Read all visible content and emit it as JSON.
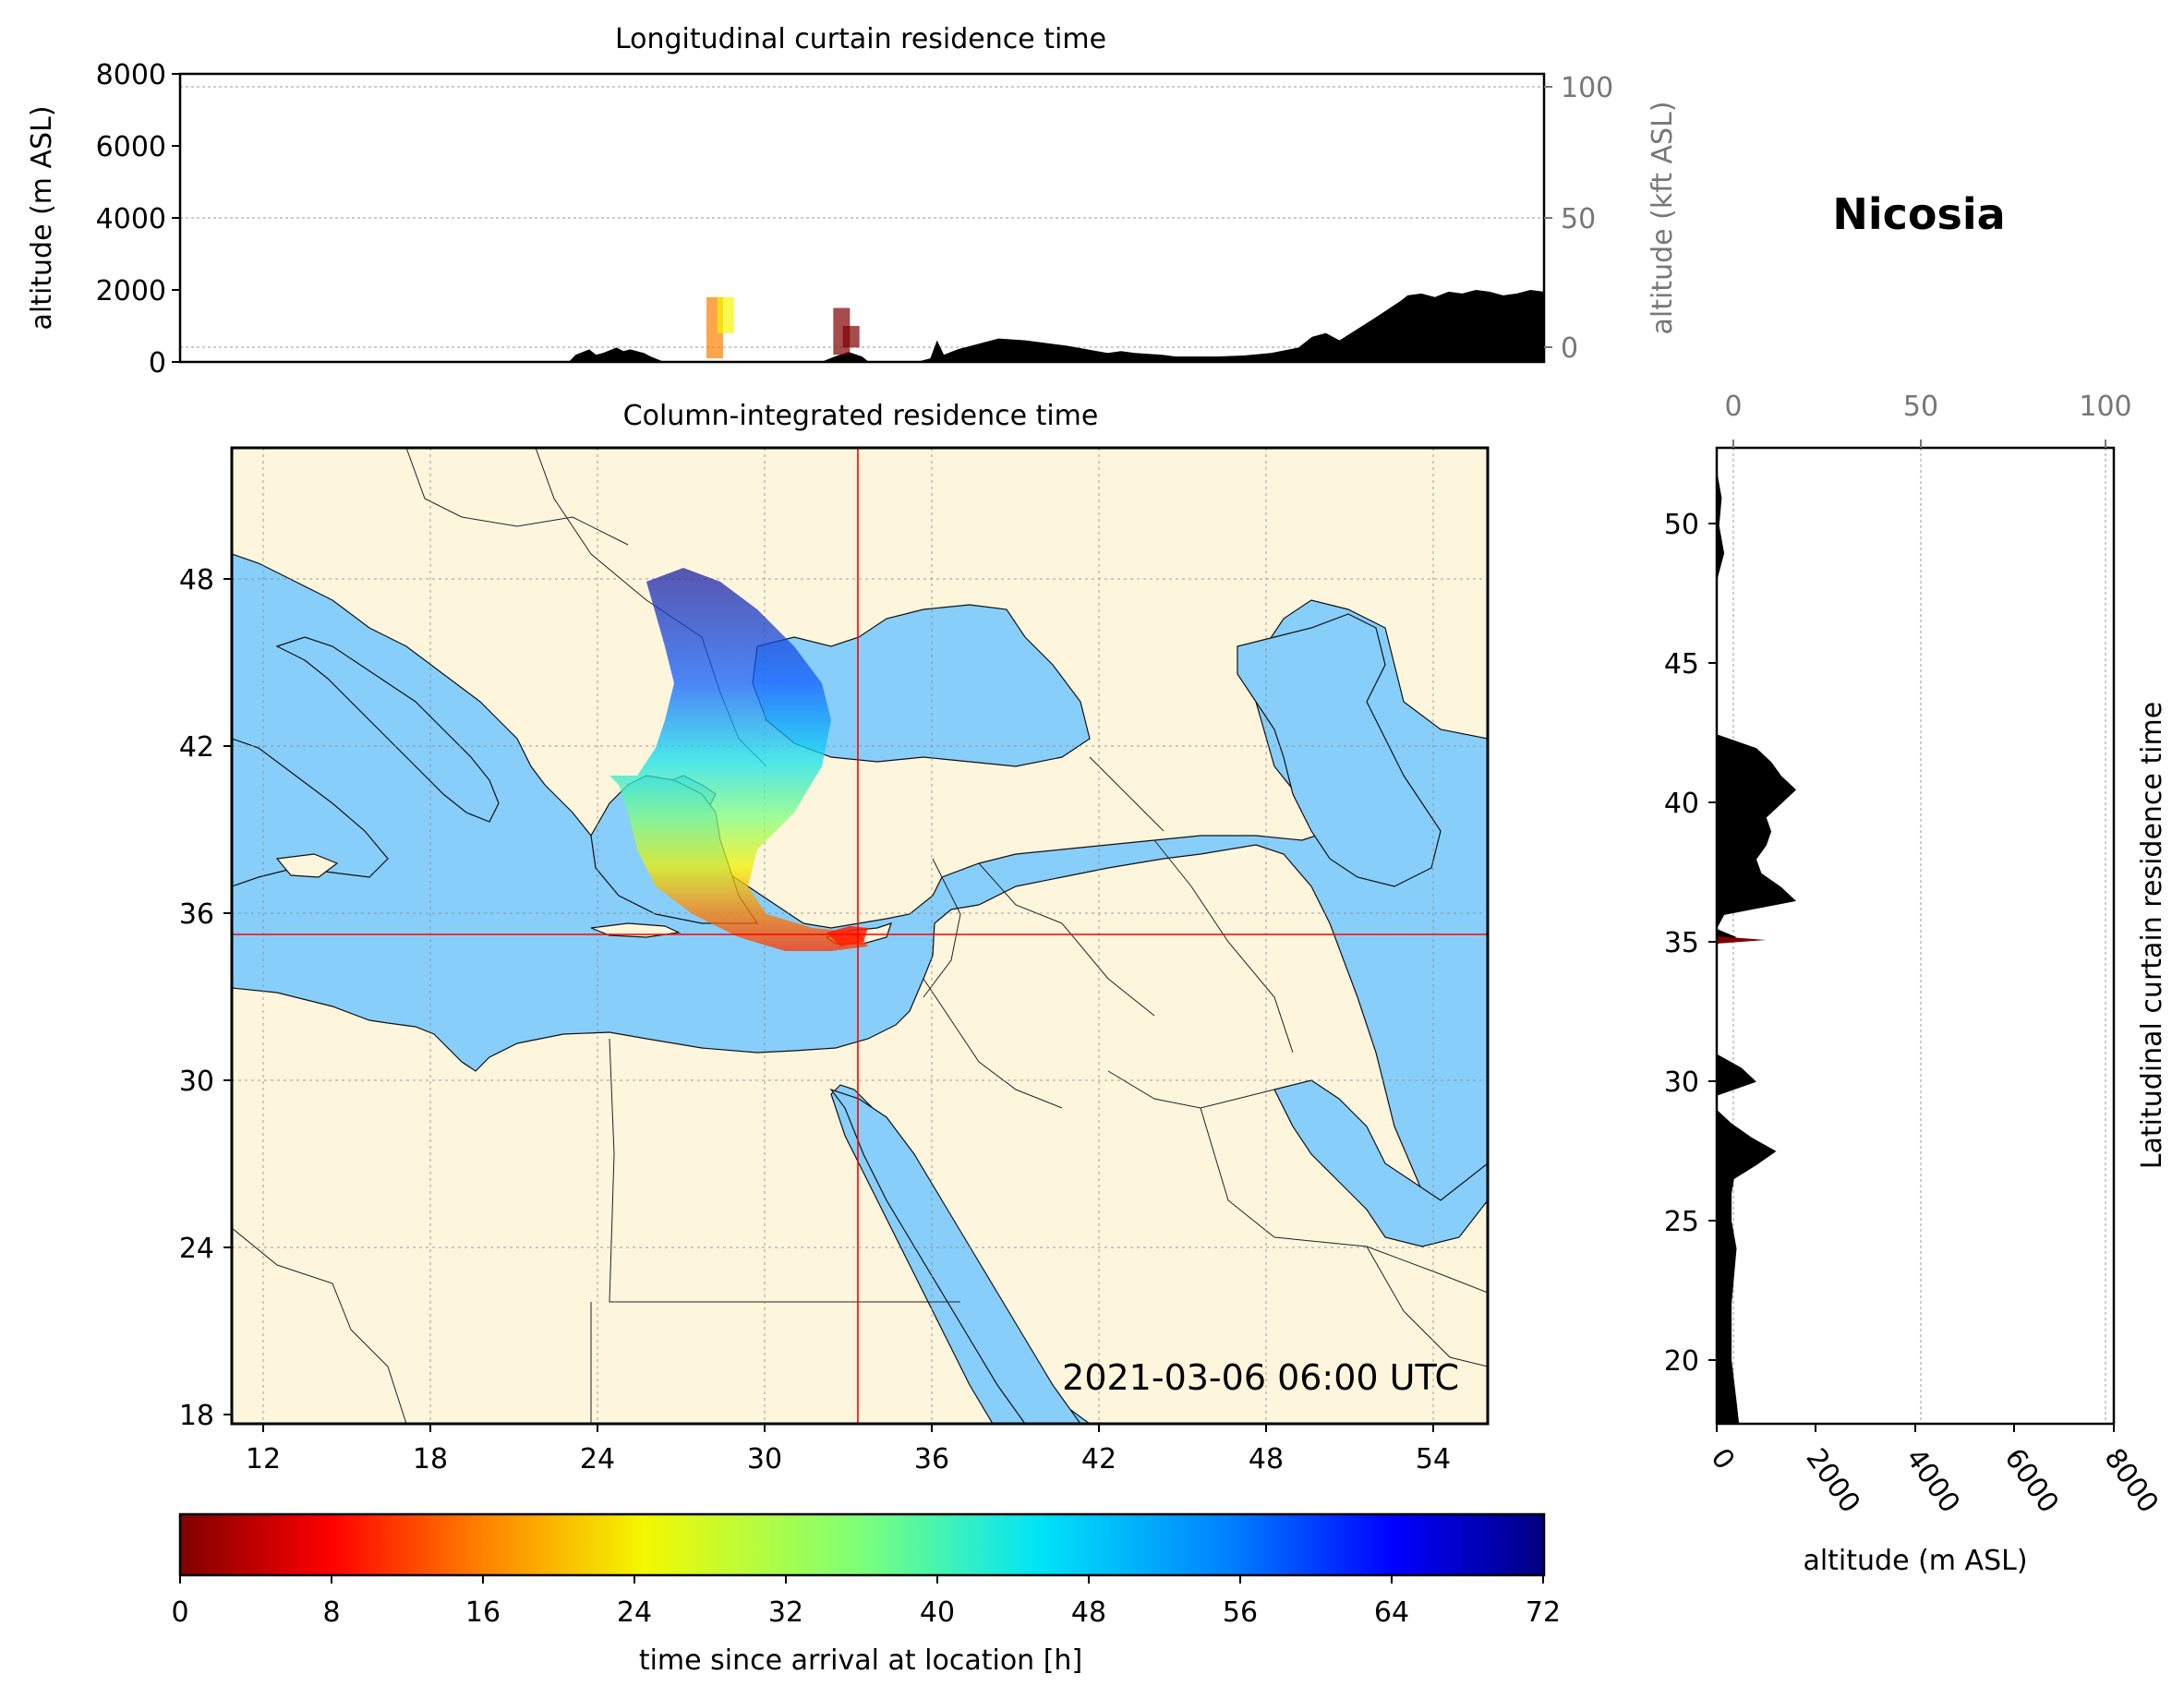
{
  "location": "Nicosia",
  "timestamp": "2021-03-06 06:00 UTC",
  "top_panel": {
    "title": "Longitudinal curtain residence time",
    "ylabel_left": "altitude (m ASL)",
    "ylabel_right": "altitude (kft ASL)",
    "left_ticks": [
      "0",
      "2000",
      "4000",
      "6000",
      "8000"
    ],
    "right_ticks": [
      "0",
      "50",
      "100"
    ]
  },
  "map_panel": {
    "title": "Column-integrated residence time",
    "lon_ticks": [
      "12",
      "18",
      "24",
      "30",
      "36",
      "42",
      "48",
      "54"
    ],
    "lat_ticks": [
      "18",
      "24",
      "30",
      "36",
      "42",
      "48"
    ],
    "location_lon": 33.4,
    "location_lat": 35.2,
    "land_color": "#fdf5dc",
    "sea_color": "#87cefa"
  },
  "right_panel": {
    "ylabel": "Latitudinal curtain residence time",
    "xlabel": "altitude (m ASL)",
    "bottom_ticks": [
      "0",
      "2000",
      "4000",
      "6000",
      "8000"
    ],
    "top_ticks": [
      "0",
      "50",
      "100"
    ],
    "lat_ticks": [
      "20",
      "25",
      "30",
      "35",
      "40",
      "45",
      "50"
    ]
  },
  "colorbar": {
    "label": "time since arrival at location [h]",
    "ticks": [
      "0",
      "8",
      "16",
      "24",
      "32",
      "40",
      "48",
      "56",
      "64",
      "72"
    ],
    "colormap": "jet_r",
    "min": 0,
    "max": 72
  },
  "chart_data": [
    {
      "type": "area",
      "title": "Longitudinal curtain residence time",
      "ylabel": "altitude (m ASL)",
      "ylim": [
        0,
        8000
      ],
      "secondary_ylabel": "altitude (kft ASL)",
      "secondary_ylim": [
        -5,
        105
      ],
      "grid": true,
      "terrain": {
        "x": [
          0,
          0.285,
          0.29,
          0.3,
          0.305,
          0.31,
          0.32,
          0.325,
          0.33,
          0.34,
          0.345,
          0.355,
          0.47,
          0.48,
          0.49,
          0.5,
          0.505,
          0.54,
          0.55,
          0.555,
          0.56,
          0.57,
          0.6,
          0.6,
          0.62,
          0.65,
          0.68,
          0.69,
          0.7,
          0.72,
          0.73,
          0.76,
          0.78,
          0.8,
          0.82,
          0.83,
          0.84,
          0.85,
          0.875,
          0.895,
          0.9,
          0.91,
          0.92,
          0.93,
          0.94,
          0.95,
          0.96,
          0.97,
          0.98,
          0.99,
          1.0
        ],
        "y": [
          0,
          0,
          200,
          350,
          200,
          250,
          400,
          300,
          350,
          250,
          150,
          0,
          0,
          150,
          280,
          150,
          0,
          0,
          100,
          600,
          200,
          350,
          650,
          650,
          600,
          450,
          250,
          300,
          250,
          200,
          150,
          150,
          180,
          250,
          400,
          700,
          800,
          600,
          1200,
          1700,
          1850,
          1900,
          1800,
          1950,
          1900,
          2000,
          1950,
          1850,
          1900,
          2000,
          1950
        ]
      },
      "plumes": [
        {
          "x": 0.392,
          "ylim": [
            100,
            1800
          ],
          "hours": 22
        },
        {
          "x": 0.4,
          "ylim": [
            800,
            1800
          ],
          "hours": 30
        },
        {
          "x": 0.485,
          "ylim": [
            200,
            1500
          ],
          "hours": 6
        },
        {
          "x": 0.492,
          "ylim": [
            400,
            1000
          ],
          "hours": 2
        }
      ]
    },
    {
      "type": "area",
      "title": "Latitudinal curtain residence time",
      "xlabel": "altitude (m ASL)",
      "xlim": [
        0,
        8000
      ],
      "secondary_xlim": [
        0,
        100
      ],
      "ylim": [
        17.7,
        52.8
      ],
      "grid": true,
      "terrain": {
        "lat": [
          17.7,
          18.5,
          20,
          21,
          22,
          23,
          24,
          25,
          26,
          26.5,
          27,
          27.5,
          28,
          28.5,
          29,
          29.5,
          30,
          30.5,
          31,
          32,
          33,
          34,
          35,
          35.2,
          35.5,
          36,
          36.5,
          37,
          37.5,
          38,
          38.5,
          39,
          39.5,
          40,
          40.5,
          41,
          41.5,
          42,
          42.5,
          44,
          46,
          48,
          49,
          50,
          51,
          52,
          52.8
        ],
        "alt": [
          450,
          400,
          300,
          300,
          300,
          350,
          400,
          300,
          300,
          350,
          800,
          1200,
          700,
          300,
          0,
          0,
          800,
          500,
          0,
          0,
          0,
          0,
          0,
          400,
          0,
          150,
          1600,
          1300,
          900,
          800,
          1000,
          1100,
          1000,
          1300,
          1600,
          1300,
          1100,
          800,
          0,
          0,
          0,
          0,
          150,
          50,
          100,
          0,
          0
        ]
      },
      "plumes": [
        {
          "lat": 35.1,
          "alt_range": [
            0,
            1000
          ],
          "hours": 1
        }
      ]
    }
  ]
}
